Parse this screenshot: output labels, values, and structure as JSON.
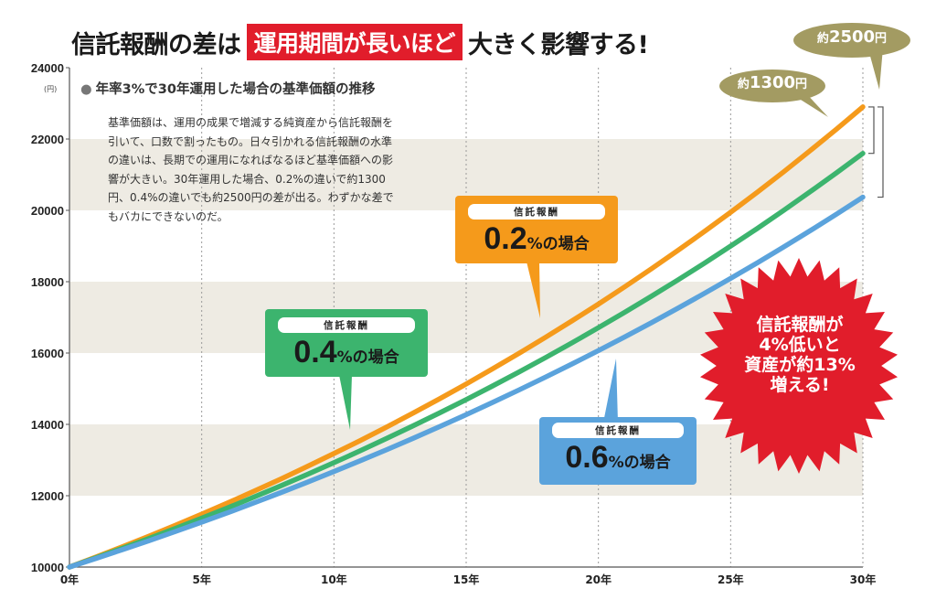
{
  "title": {
    "part1": "信託報酬の差は",
    "highlight": "運用期間が長いほど",
    "part2": "大きく影響する!"
  },
  "subtitle": "年率3%で30年運用した場合の基準価額の推移",
  "description": "基準価額は、運用の成果で増減する純資産から信託報酬を引いて、口数で割ったもの。日々引かれる信託報酬の水準の違いは、長期での運用になればなるほど基準価額への影響が大きい。30年運用した場合、0.2%の違いで約1300円、0.4%の違いでも約2500円の差が出る。わずかな差でもバカにできないのだ。",
  "y_unit": "(円)",
  "callouts": {
    "fee_label": "信託報酬",
    "c02": {
      "value": "0.2",
      "suffix": "%の場合"
    },
    "c04": {
      "value": "0.4",
      "suffix": "%の場合"
    },
    "c06": {
      "value": "0.6",
      "suffix": "%の場合"
    }
  },
  "badges": {
    "diff_1300": {
      "prefix": "約",
      "amount": "1300",
      "unit": "円"
    },
    "diff_2500": {
      "prefix": "約",
      "amount": "2500",
      "unit": "円"
    }
  },
  "burst": {
    "line1": "信託報酬が",
    "line2": "4%低いと",
    "line3": "資産が約13%",
    "line4": "増える!"
  },
  "colors": {
    "orange": "#f59a1b",
    "green": "#3cb46e",
    "blue": "#5ba3dc",
    "band": "#eeebe3",
    "olive": "#a39b62",
    "red": "#e11d2b"
  },
  "chart_data": {
    "type": "line",
    "x": [
      0,
      1,
      2,
      3,
      4,
      5,
      6,
      7,
      8,
      9,
      10,
      11,
      12,
      13,
      14,
      15,
      16,
      17,
      18,
      19,
      20,
      21,
      22,
      23,
      24,
      25,
      26,
      27,
      28,
      29,
      30
    ],
    "x_tick_values": [
      0,
      5,
      10,
      15,
      20,
      25,
      30
    ],
    "x_tick_labels": [
      "0年",
      "5年",
      "10年",
      "15年",
      "20年",
      "25年",
      "30年"
    ],
    "y_ticks": [
      10000,
      12000,
      14000,
      16000,
      18000,
      20000,
      22000,
      24000
    ],
    "xlim": [
      0,
      30
    ],
    "ylim": [
      10000,
      24000
    ],
    "grid": true,
    "series": [
      {
        "key": "fee02",
        "color": "#f59a1b",
        "values": [
          10000,
          10280,
          10568,
          10864,
          11168,
          11481,
          11802,
          12133,
          12472,
          12822,
          13181,
          13550,
          13929,
          14319,
          14720,
          15132,
          15556,
          15992,
          16440,
          16900,
          17373,
          17860,
          18360,
          18874,
          19402,
          19946,
          20504,
          21078,
          21668,
          22275,
          22899
        ]
      },
      {
        "key": "fee04",
        "color": "#3cb46e",
        "values": [
          10000,
          10260,
          10527,
          10800,
          11081,
          11369,
          11665,
          11968,
          12279,
          12599,
          12926,
          13262,
          13607,
          13961,
          14324,
          14696,
          15078,
          15470,
          15873,
          16285,
          16709,
          17143,
          17589,
          18046,
          18515,
          18997,
          19491,
          19998,
          20518,
          21051,
          21598
        ]
      },
      {
        "key": "fee06",
        "color": "#5ba3dc",
        "values": [
          10000,
          10240,
          10486,
          10737,
          10995,
          11259,
          11529,
          11806,
          12089,
          12379,
          12676,
          12981,
          13292,
          13611,
          13938,
          14272,
          14615,
          14966,
          15325,
          15693,
          16069,
          16455,
          16850,
          17254,
          17668,
          18092,
          18526,
          18971,
          19426,
          19892,
          20370
        ]
      }
    ]
  }
}
